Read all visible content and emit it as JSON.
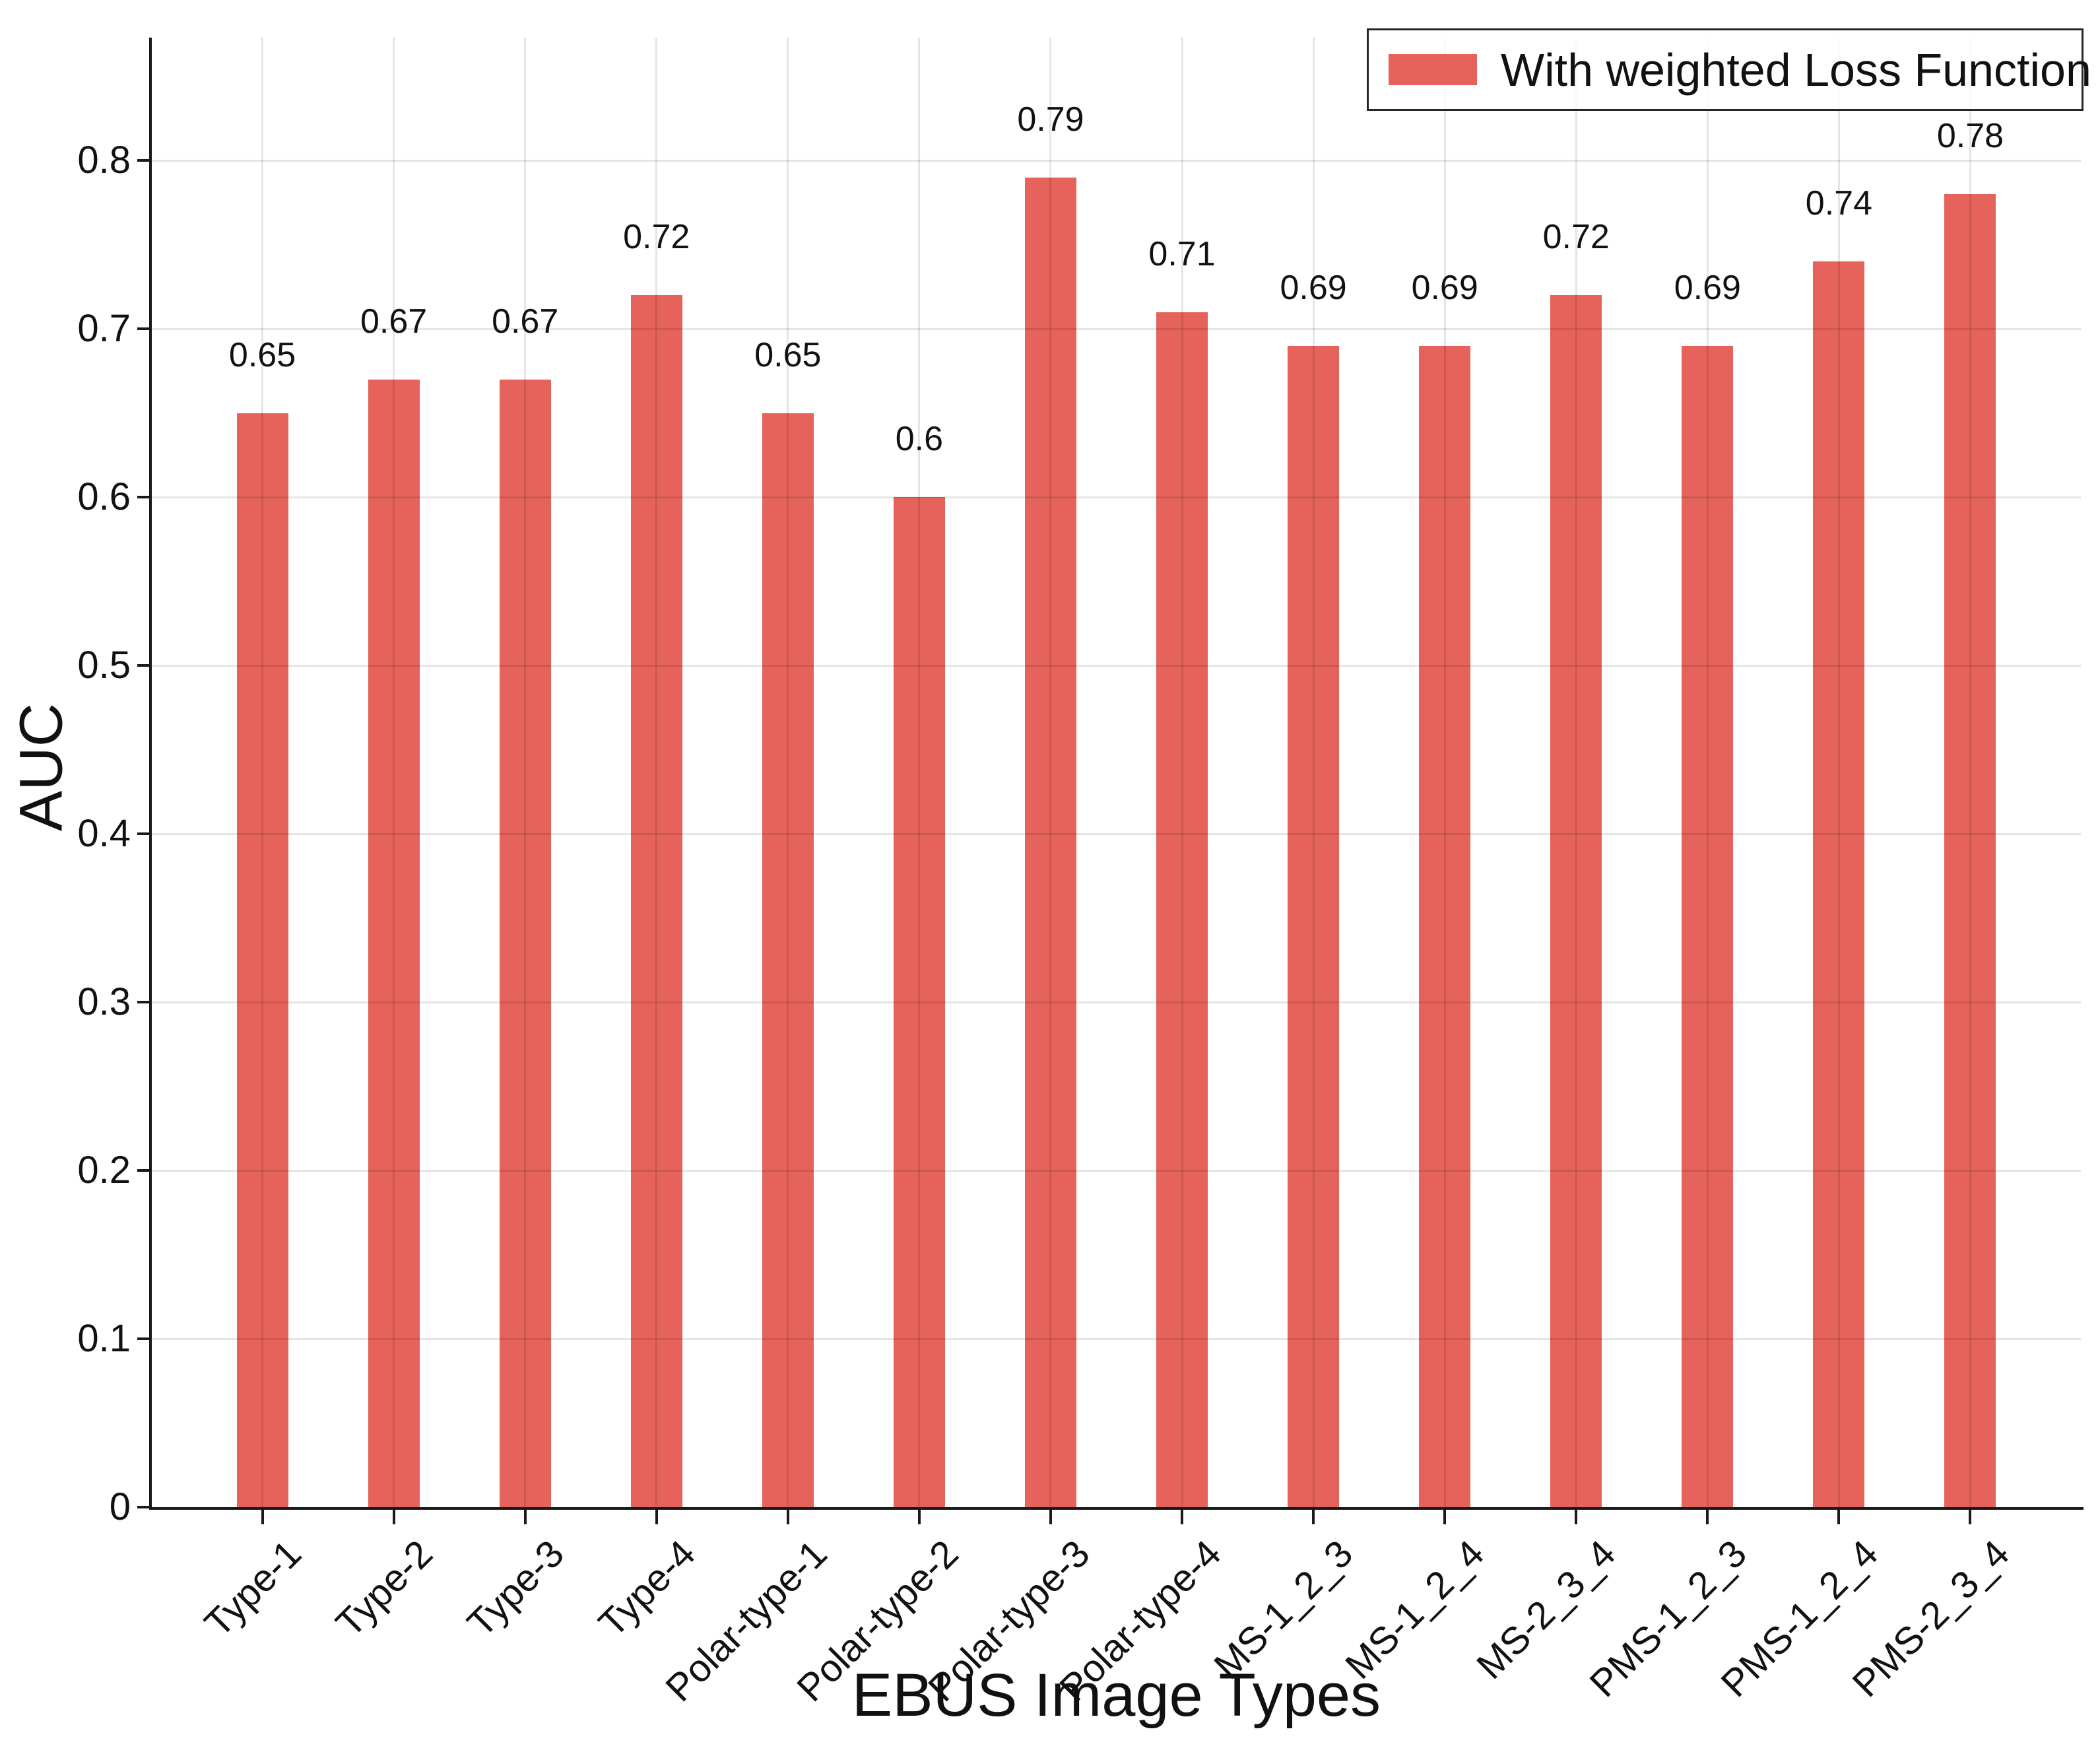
{
  "chart_data": {
    "type": "bar",
    "title": "",
    "xlabel": "EBUS Image Types",
    "ylabel": "AUC",
    "categories": [
      "Type-1",
      "Type-2",
      "Type-3",
      "Type-4",
      "Polar-type-1",
      "Polar-type-2",
      "Polar-type-3",
      "Polar-type-4",
      "MS-1_2_3",
      "MS-1_2_4",
      "MS-2_3_4",
      "PMS-1_2_3",
      "PMS-1_2_4",
      "PMS-2_3_4"
    ],
    "series": [
      {
        "name": "With weighted Loss Function",
        "values": [
          0.65,
          0.67,
          0.67,
          0.72,
          0.65,
          0.6,
          0.79,
          0.71,
          0.69,
          0.69,
          0.72,
          0.69,
          0.74,
          0.78
        ]
      }
    ],
    "value_labels": [
      "0.65",
      "0.67",
      "0.67",
      "0.72",
      "0.65",
      "0.6",
      "0.79",
      "0.71",
      "0.69",
      "0.69",
      "0.72",
      "0.69",
      "0.74",
      "0.78"
    ],
    "ytick_values": [
      0,
      0.1,
      0.2,
      0.3,
      0.4,
      0.5,
      0.6,
      0.7,
      0.8
    ],
    "ytick_labels": [
      "0",
      "0.1",
      "0.2",
      "0.3",
      "0.4",
      "0.5",
      "0.6",
      "0.7",
      "0.8"
    ],
    "ylim": [
      0,
      0.873
    ],
    "grid": true,
    "legend": {
      "label": "With weighted Loss Function",
      "position": "upper right"
    },
    "colors": {
      "bar": "#E5635A",
      "grid": "rgba(0,0,0,0.10)",
      "spine": "#1a1a1a",
      "text": "#111111"
    }
  }
}
